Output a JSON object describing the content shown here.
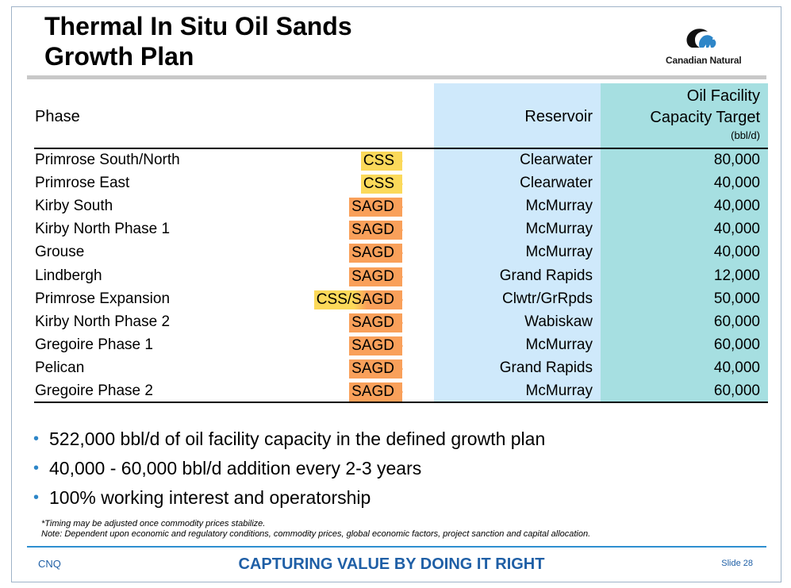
{
  "title": {
    "line1": "Thermal In Situ Oil Sands",
    "line2": "Growth Plan"
  },
  "logo": {
    "text": "Canadian Natural",
    "icon": "bear-and-crescent-logo-icon"
  },
  "table": {
    "headers": {
      "phase": "Phase",
      "reservoir": "Reservoir",
      "capacity_line1": "Oil Facility",
      "capacity_line2": "Capacity Target",
      "capacity_unit": "(bbl/d)"
    },
    "rows": [
      {
        "phase": "Primrose South/North",
        "method": "CSS",
        "reservoir": "Clearwater",
        "capacity": "80,000"
      },
      {
        "phase": "Primrose East",
        "method": "CSS",
        "reservoir": "Clearwater",
        "capacity": "40,000"
      },
      {
        "phase": "Kirby South",
        "method": "SAGD",
        "reservoir": "McMurray",
        "capacity": "40,000"
      },
      {
        "phase": "Kirby North Phase 1",
        "method": "SAGD",
        "reservoir": "McMurray",
        "capacity": "40,000"
      },
      {
        "phase": "Grouse",
        "method": "SAGD",
        "reservoir": "McMurray",
        "capacity": "40,000"
      },
      {
        "phase": "Lindbergh",
        "method": "SAGD",
        "reservoir": "Grand Rapids",
        "capacity": "12,000"
      },
      {
        "phase": "Primrose Expansion",
        "method": "CSS/SAGD",
        "reservoir": "Clwtr/GrRpds",
        "capacity": "50,000"
      },
      {
        "phase": "Kirby North Phase 2",
        "method": "SAGD",
        "reservoir": "Wabiskaw",
        "capacity": "60,000"
      },
      {
        "phase": "Gregoire Phase 1",
        "method": "SAGD",
        "reservoir": "McMurray",
        "capacity": "60,000"
      },
      {
        "phase": "Pelican",
        "method": "SAGD",
        "reservoir": "Grand Rapids",
        "capacity": "40,000"
      },
      {
        "phase": "Gregoire Phase 2",
        "method": "SAGD",
        "reservoir": "McMurray",
        "capacity": "60,000"
      }
    ]
  },
  "bullets": [
    "522,000 bbl/d of oil facility capacity in the defined growth plan",
    "40,000 - 60,000 bbl/d addition every 2-3 years",
    "100% working interest and operatorship"
  ],
  "footnotes": {
    "timing": "*Timing may be adjusted once commodity prices stabilize.",
    "note": "Note: Dependent upon economic and regulatory conditions, commodity prices, global economic factors, project sanction and capital allocation."
  },
  "footer": {
    "left": "CNQ",
    "center": "CAPTURING VALUE BY DOING IT RIGHT",
    "right": "Slide 28"
  },
  "colors": {
    "css_tag": "#fbd95a",
    "sagd_tag": "#f9a05a",
    "reservoir_column": "#cfe9fb",
    "capacity_column": "#a6dfe1",
    "accent_blue": "#1f5fa6"
  }
}
